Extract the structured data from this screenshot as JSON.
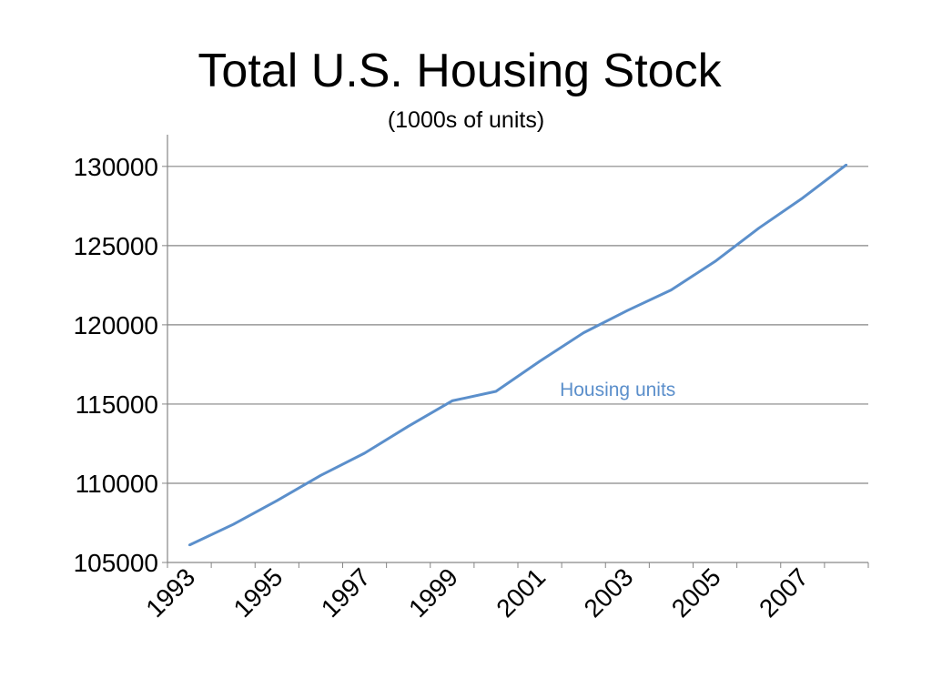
{
  "chart_data": {
    "type": "line",
    "title": "Total U.S. Housing Stock",
    "subtitle": "(1000s of units)",
    "xlabel": "",
    "ylabel": "",
    "x": [
      1993,
      1994,
      1995,
      1996,
      1997,
      1998,
      1999,
      2000,
      2001,
      2002,
      2003,
      2004,
      2005,
      2006,
      2007,
      2008
    ],
    "x_tick_labels": [
      "1993",
      "1995",
      "1997",
      "1999",
      "2001",
      "2003",
      "2005",
      "2007"
    ],
    "y_tick_labels": [
      "105000",
      "110000",
      "115000",
      "120000",
      "125000",
      "130000"
    ],
    "ylim": [
      105000,
      132000
    ],
    "grid": "horizontal",
    "legend": "inline label near series",
    "series": [
      {
        "name": "Housing units",
        "color": "#5B8FCB",
        "values": [
          106100,
          107400,
          108900,
          110500,
          111900,
          113600,
          115200,
          115800,
          117700,
          119500,
          120900,
          122200,
          124000,
          126100,
          128000,
          130100
        ]
      }
    ]
  }
}
